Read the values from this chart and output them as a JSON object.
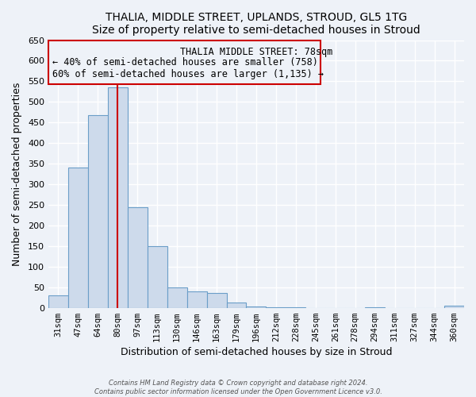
{
  "title": "THALIA, MIDDLE STREET, UPLANDS, STROUD, GL5 1TG",
  "subtitle": "Size of property relative to semi-detached houses in Stroud",
  "xlabel": "Distribution of semi-detached houses by size in Stroud",
  "ylabel": "Number of semi-detached properties",
  "bin_labels": [
    "31sqm",
    "47sqm",
    "64sqm",
    "80sqm",
    "97sqm",
    "113sqm",
    "130sqm",
    "146sqm",
    "163sqm",
    "179sqm",
    "196sqm",
    "212sqm",
    "228sqm",
    "245sqm",
    "261sqm",
    "278sqm",
    "294sqm",
    "311sqm",
    "327sqm",
    "344sqm",
    "360sqm"
  ],
  "bin_values": [
    30,
    340,
    467,
    535,
    245,
    150,
    50,
    39,
    37,
    12,
    3,
    2,
    1,
    0,
    0,
    0,
    1,
    0,
    0,
    0,
    5
  ],
  "bar_color": "#cddaeb",
  "bar_edge_color": "#6b9ec8",
  "property_line_bin_index": 3,
  "property_line_color": "#cc0000",
  "annotation_title": "THALIA MIDDLE STREET: 78sqm",
  "annotation_line1": "← 40% of semi-detached houses are smaller (758)",
  "annotation_line2": "60% of semi-detached houses are larger (1,135) →",
  "annotation_box_color": "#cc0000",
  "ylim": [
    0,
    650
  ],
  "yticks": [
    0,
    50,
    100,
    150,
    200,
    250,
    300,
    350,
    400,
    450,
    500,
    550,
    600,
    650
  ],
  "footer1": "Contains HM Land Registry data © Crown copyright and database right 2024.",
  "footer2": "Contains public sector information licensed under the Open Government Licence v3.0.",
  "bg_color": "#eef2f8"
}
